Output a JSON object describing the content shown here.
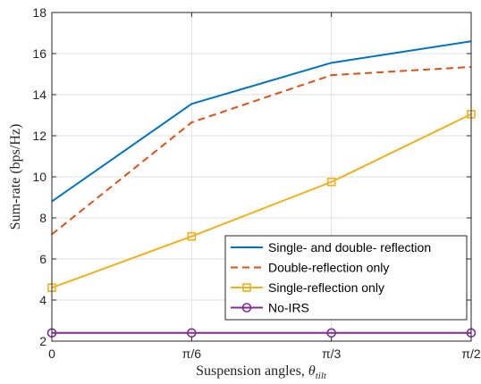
{
  "chart_data": {
    "type": "line",
    "categories": [
      "0",
      "π/6",
      "π/3",
      "π/2"
    ],
    "x": [
      0,
      1,
      2,
      3
    ],
    "xlabel": "Suspension angles, θtilt",
    "xlabel_main": "Suspension angles, ",
    "xlabel_theta": "θ",
    "xlabel_sub": "tilt",
    "ylabel": "Sum-rate (bps/Hz)",
    "ylim": [
      2,
      18
    ],
    "yticks": [
      2,
      4,
      6,
      8,
      10,
      12,
      14,
      16,
      18
    ],
    "grid": true,
    "legend_position": "lower-right",
    "series": [
      {
        "name": "Single- and double- reflection",
        "values": [
          8.8,
          13.55,
          15.55,
          16.6
        ],
        "color": "#0072BD",
        "dash": "solid",
        "marker": "none"
      },
      {
        "name": "Double-reflection only",
        "values": [
          7.2,
          12.65,
          14.95,
          15.35
        ],
        "color": "#D95319",
        "dash": "dashed",
        "marker": "none"
      },
      {
        "name": "Single-reflection only",
        "values": [
          4.6,
          7.1,
          9.75,
          13.05
        ],
        "color": "#EDB120",
        "dash": "solid",
        "marker": "square"
      },
      {
        "name": "No-IRS",
        "values": [
          2.4,
          2.4,
          2.4,
          2.4
        ],
        "color": "#7E2F8E",
        "dash": "solid",
        "marker": "circle"
      }
    ]
  }
}
